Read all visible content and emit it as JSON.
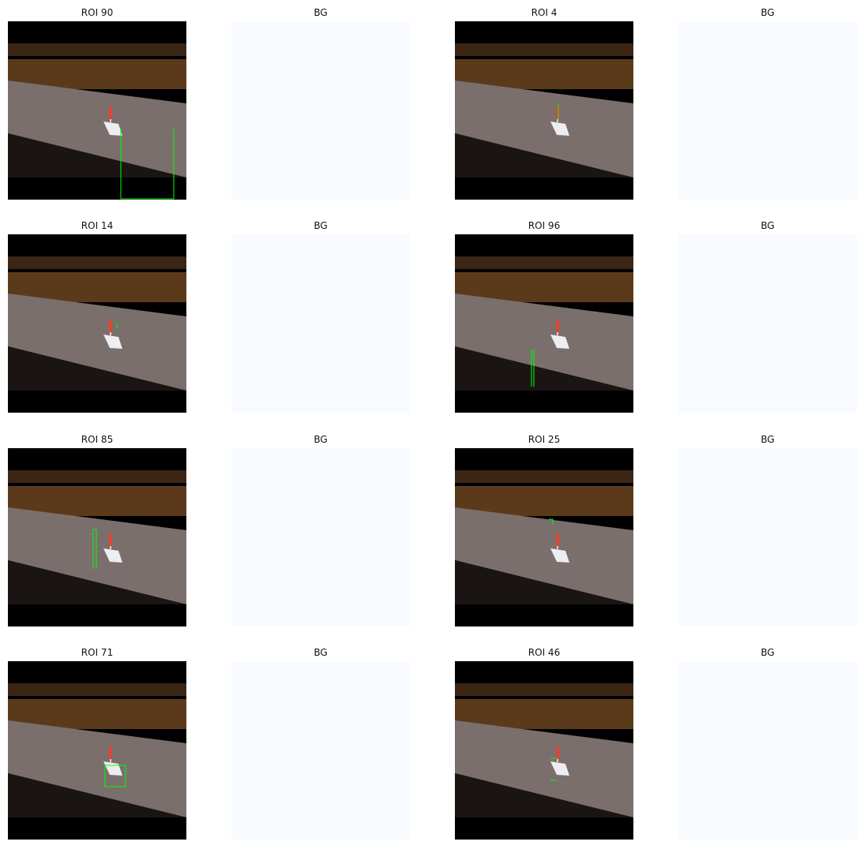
{
  "figure": {
    "rows": [
      {
        "roi_title": "ROI 90",
        "bg_title": "BG",
        "roi_title_2": "ROI 4",
        "bg_title_2": "BG"
      },
      {
        "roi_title": "ROI 14",
        "bg_title": "BG",
        "roi_title_2": "ROI 96",
        "bg_title_2": "BG"
      },
      {
        "roi_title": "ROI 85",
        "bg_title": "BG",
        "roi_title_2": "ROI 25",
        "bg_title_2": "BG"
      },
      {
        "roi_title": "ROI 71",
        "bg_title": "BG",
        "roi_title_2": "ROI 46",
        "bg_title_2": "BG"
      }
    ]
  },
  "colors": {
    "box_outline": "#00ff00",
    "bg_panel": "#f7fbff",
    "title_text": "#111111"
  }
}
